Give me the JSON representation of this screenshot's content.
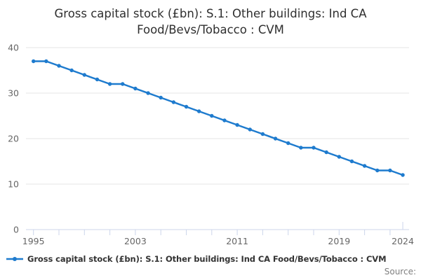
{
  "chart_data": {
    "type": "line",
    "title": "Gross capital stock (£bn): S.1: Other buildings: Ind CA Food/Bevs/Tobacco : CVM",
    "title_lines": [
      "Gross capital stock (£bn): S.1: Other buildings: Ind CA",
      "Food/Bevs/Tobacco : CVM"
    ],
    "x": [
      1995,
      1996,
      1997,
      1998,
      1999,
      2000,
      2001,
      2002,
      2003,
      2004,
      2005,
      2006,
      2007,
      2008,
      2009,
      2010,
      2011,
      2012,
      2013,
      2014,
      2015,
      2016,
      2017,
      2018,
      2019,
      2020,
      2021,
      2022,
      2023,
      2024
    ],
    "series": [
      {
        "name": "Gross capital stock (£bn): S.1: Other buildings: Ind CA Food/Bevs/Tobacco : CVM",
        "values": [
          37,
          37,
          36,
          35,
          34,
          33,
          32,
          32,
          31,
          30,
          29,
          28,
          27,
          26,
          25,
          24,
          23,
          22,
          21,
          20,
          19,
          18,
          18,
          17,
          16,
          15,
          14,
          13,
          13,
          12
        ]
      }
    ],
    "xlabel": "",
    "ylabel": "",
    "ylim": [
      0,
      40
    ],
    "y_tick_values": [
      0,
      10,
      20,
      30,
      40
    ],
    "y_tick_labels": [
      "0",
      "10",
      "20",
      "30",
      "40"
    ],
    "x_tick_label_years": [
      1995,
      2003,
      2011,
      2019,
      2024
    ],
    "x_tick_labels": [
      "1995",
      "2003",
      "2011",
      "2019",
      "2024"
    ],
    "x_minor_tick_step": 2,
    "grid": "horizontal",
    "legend_position": "bottom-left",
    "colors": {
      "series": "#1e7bce",
      "grid": "#e6e6e6",
      "axis": "#ccd6eb",
      "tick_text": "#666666",
      "title_text": "#2f2f2f",
      "legend_text": "#333333",
      "source_text": "#7f7f7f"
    }
  },
  "legend": {
    "label": "Gross capital stock (£bn): S.1: Other buildings: Ind CA Food/Bevs/Tobacco : CVM"
  },
  "footer": {
    "source_label": "Source:"
  }
}
